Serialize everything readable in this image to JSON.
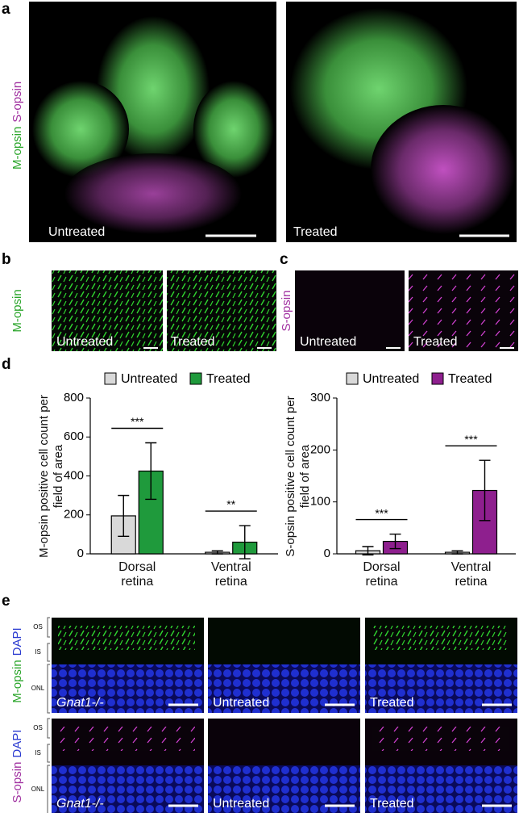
{
  "panel_labels": [
    "a",
    "b",
    "c",
    "d",
    "e"
  ],
  "panel_a": {
    "label_green": "M-opsin",
    "label_magenta": "S-opsin",
    "images": [
      "Untreated",
      "Treated"
    ]
  },
  "panel_b": {
    "label": "M-opsin",
    "images": [
      "Untreated",
      "Treated"
    ]
  },
  "panel_c": {
    "label": "S-opsin",
    "images": [
      "Untreated",
      "Treated"
    ]
  },
  "panel_e": {
    "rows": [
      {
        "label_a": "M-opsin",
        "label_b": "DAPI",
        "layers": [
          "OS",
          "IS",
          "ONL"
        ]
      },
      {
        "label_a": "S-opsin",
        "label_b": "DAPI",
        "layers": [
          "OS",
          "IS",
          "ONL"
        ]
      }
    ],
    "images": [
      "Gnat1-/-",
      "Untreated",
      "Treated"
    ]
  },
  "chart_data": [
    {
      "type": "bar",
      "ylabel": "M-opsin positive cell count per field of area",
      "categories": [
        "Dorsal retina",
        "Ventral retina"
      ],
      "series": [
        {
          "name": "Untreated",
          "color": "#d9d9d9",
          "values": [
            195,
            8
          ],
          "errors": [
            105,
            8
          ]
        },
        {
          "name": "Treated",
          "color": "#1f9a3c",
          "values": [
            425,
            60
          ],
          "errors": [
            145,
            85
          ]
        }
      ],
      "ylim": [
        0,
        800
      ],
      "yticks": [
        0,
        200,
        400,
        600,
        800
      ],
      "annotations": [
        "***",
        "**"
      ]
    },
    {
      "type": "bar",
      "ylabel": "S-opsin positive cell count per field of area",
      "categories": [
        "Dorsal retina",
        "Ventral retina"
      ],
      "series": [
        {
          "name": "Untreated",
          "color": "#d9d9d9",
          "values": [
            6,
            3
          ],
          "errors": [
            8,
            3
          ]
        },
        {
          "name": "Treated",
          "color": "#8e1f8e",
          "values": [
            24,
            122
          ],
          "errors": [
            14,
            58
          ]
        }
      ],
      "ylim": [
        0,
        300
      ],
      "yticks": [
        0,
        100,
        200,
        300
      ],
      "annotations": [
        "***",
        "***"
      ]
    }
  ]
}
